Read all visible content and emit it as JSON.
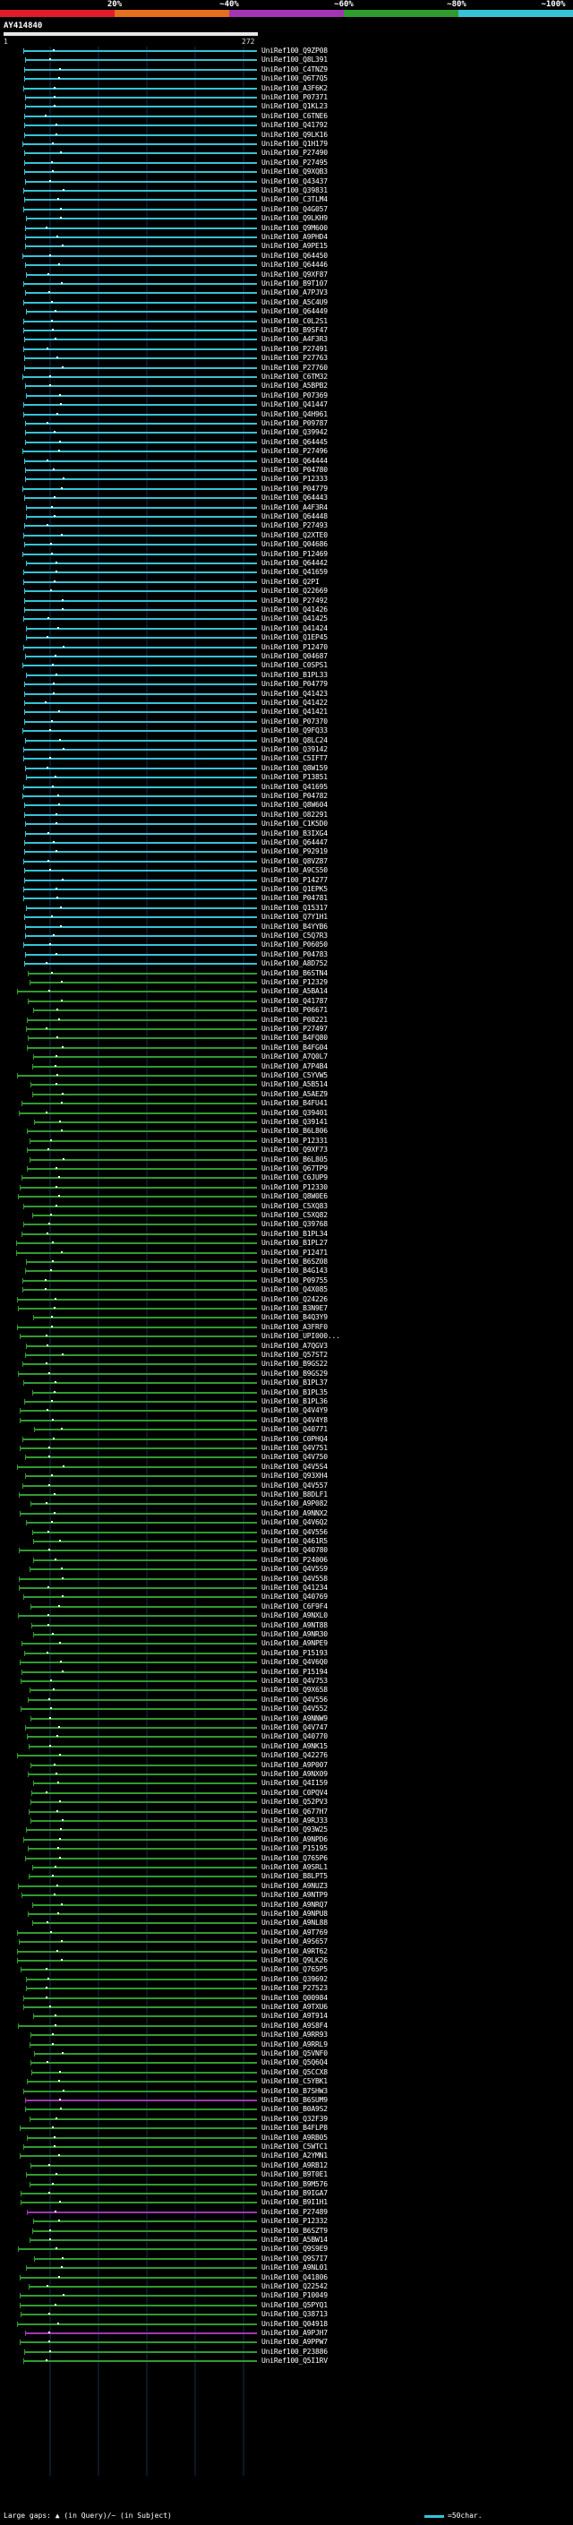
{
  "scale": {
    "labels": [
      "20%",
      "~40%",
      "~60%",
      "~80%",
      "~100%"
    ],
    "colors": [
      "#e21b2a",
      "#e66f1e",
      "#a235b4",
      "#2f9c2f",
      "#36c3d6"
    ]
  },
  "query": {
    "title": "AY414840",
    "start": "1",
    "end": "272"
  },
  "hits": [
    {
      "id": "UniRef100_Q9ZP08",
      "c": 4
    },
    {
      "id": "UniRef100_Q8L391",
      "c": 4
    },
    {
      "id": "UniRef100_C4TNZ9",
      "c": 4
    },
    {
      "id": "UniRef100_Q6T7Q5",
      "c": 4
    },
    {
      "id": "UniRef100_A3F6K2",
      "c": 4
    },
    {
      "id": "UniRef100_P07371",
      "c": 4
    },
    {
      "id": "UniRef100_Q1KL23",
      "c": 4
    },
    {
      "id": "UniRef100_C6TNE6",
      "c": 4
    },
    {
      "id": "UniRef100_Q41792",
      "c": 4
    },
    {
      "id": "UniRef100_Q9LK16",
      "c": 4
    },
    {
      "id": "UniRef100_Q1H179",
      "c": 4
    },
    {
      "id": "UniRef100_P27490",
      "c": 4
    },
    {
      "id": "UniRef100_P27495",
      "c": 4
    },
    {
      "id": "UniRef100_Q9XQB3",
      "c": 4
    },
    {
      "id": "UniRef100_Q43437",
      "c": 4
    },
    {
      "id": "UniRef100_Q39831",
      "c": 4
    },
    {
      "id": "UniRef100_C3TLM4",
      "c": 4
    },
    {
      "id": "UniRef100_Q4G057",
      "c": 4
    },
    {
      "id": "UniRef100_Q9LKH9",
      "c": 4
    },
    {
      "id": "UniRef100_Q9M600",
      "c": 4
    },
    {
      "id": "UniRef100_A9PHD4",
      "c": 4
    },
    {
      "id": "UniRef100_A9PE15",
      "c": 4
    },
    {
      "id": "UniRef100_Q64450",
      "c": 4
    },
    {
      "id": "UniRef100_Q64446",
      "c": 4
    },
    {
      "id": "UniRef100_Q9XF87",
      "c": 4
    },
    {
      "id": "UniRef100_B9T107",
      "c": 4
    },
    {
      "id": "UniRef100_A7PJV3",
      "c": 4
    },
    {
      "id": "UniRef100_A5C4U9",
      "c": 4
    },
    {
      "id": "UniRef100_Q64449",
      "c": 4
    },
    {
      "id": "UniRef100_C0L2S1",
      "c": 4
    },
    {
      "id": "UniRef100_B9SF47",
      "c": 4
    },
    {
      "id": "UniRef100_A4F3R3",
      "c": 4
    },
    {
      "id": "UniRef100_P27491",
      "c": 4
    },
    {
      "id": "UniRef100_P27763",
      "c": 4
    },
    {
      "id": "UniRef100_P27760",
      "c": 4
    },
    {
      "id": "UniRef100_C6TM32",
      "c": 4
    },
    {
      "id": "UniRef100_A5BPB2",
      "c": 4
    },
    {
      "id": "UniRef100_P07369",
      "c": 4
    },
    {
      "id": "UniRef100_Q41447",
      "c": 4
    },
    {
      "id": "UniRef100_Q4H961",
      "c": 4
    },
    {
      "id": "UniRef100_P09787",
      "c": 4
    },
    {
      "id": "UniRef100_Q39942",
      "c": 4
    },
    {
      "id": "UniRef100_Q64445",
      "c": 4
    },
    {
      "id": "UniRef100_P27496",
      "c": 4
    },
    {
      "id": "UniRef100_Q64444",
      "c": 4
    },
    {
      "id": "UniRef100_P04780",
      "c": 4
    },
    {
      "id": "UniRef100_P12333",
      "c": 4
    },
    {
      "id": "UniRef100_P04779",
      "c": 4
    },
    {
      "id": "UniRef100_Q64443",
      "c": 4
    },
    {
      "id": "UniRef100_A4F3R4",
      "c": 4
    },
    {
      "id": "UniRef100_Q64448",
      "c": 4
    },
    {
      "id": "UniRef100_P27493",
      "c": 4
    },
    {
      "id": "UniRef100_Q2XTE0",
      "c": 4
    },
    {
      "id": "UniRef100_Q04686",
      "c": 4
    },
    {
      "id": "UniRef100_P12469",
      "c": 4
    },
    {
      "id": "UniRef100_Q64442",
      "c": 4
    },
    {
      "id": "UniRef100_Q41659",
      "c": 4
    },
    {
      "id": "UniRef100_Q2PI",
      "c": 4
    },
    {
      "id": "UniRef100_Q22669",
      "c": 4
    },
    {
      "id": "UniRef100_P27492",
      "c": 4
    },
    {
      "id": "UniRef100_Q41426",
      "c": 4
    },
    {
      "id": "UniRef100_Q41425",
      "c": 4
    },
    {
      "id": "UniRef100_Q41424",
      "c": 4
    },
    {
      "id": "UniRef100_Q1EP45",
      "c": 4
    },
    {
      "id": "UniRef100_P12470",
      "c": 4
    },
    {
      "id": "UniRef100_Q04687",
      "c": 4
    },
    {
      "id": "UniRef100_C0SPS1",
      "c": 4
    },
    {
      "id": "UniRef100_B1PL33",
      "c": 4
    },
    {
      "id": "UniRef100_P04779",
      "c": 4
    },
    {
      "id": "UniRef100_Q41423",
      "c": 4
    },
    {
      "id": "UniRef100_Q41422",
      "c": 4
    },
    {
      "id": "UniRef100_Q41421",
      "c": 4
    },
    {
      "id": "UniRef100_P07370",
      "c": 4
    },
    {
      "id": "UniRef100_Q9FQ33",
      "c": 4
    },
    {
      "id": "UniRef100_Q8LC24",
      "c": 4
    },
    {
      "id": "UniRef100_Q39142",
      "c": 4
    },
    {
      "id": "UniRef100_C5IFT7",
      "c": 4
    },
    {
      "id": "UniRef100_Q8W159",
      "c": 4
    },
    {
      "id": "UniRef100_P13851",
      "c": 4
    },
    {
      "id": "UniRef100_Q41695",
      "c": 4
    },
    {
      "id": "UniRef100_P04782",
      "c": 4
    },
    {
      "id": "UniRef100_Q8W604",
      "c": 4
    },
    {
      "id": "UniRef100_O82291",
      "c": 4
    },
    {
      "id": "UniRef100_C1K5D0",
      "c": 4
    },
    {
      "id": "UniRef100_B3IXG4",
      "c": 4
    },
    {
      "id": "UniRef100_Q64447",
      "c": 4
    },
    {
      "id": "UniRef100_P92919",
      "c": 4
    },
    {
      "id": "UniRef100_Q8VZ87",
      "c": 4
    },
    {
      "id": "UniRef100_A9CS50",
      "c": 4
    },
    {
      "id": "UniRef100_P14277",
      "c": 4
    },
    {
      "id": "UniRef100_Q1EPK5",
      "c": 4
    },
    {
      "id": "UniRef100_P04781",
      "c": 4
    },
    {
      "id": "UniRef100_Q15317",
      "c": 4
    },
    {
      "id": "UniRef100_Q7Y1H1",
      "c": 4
    },
    {
      "id": "UniRef100_B4YYB6",
      "c": 4
    },
    {
      "id": "UniRef100_C5Q7R3",
      "c": 4
    },
    {
      "id": "UniRef100_P06050",
      "c": 4
    },
    {
      "id": "UniRef100_P04783",
      "c": 4
    },
    {
      "id": "UniRef100_A8D752",
      "c": 4
    },
    {
      "id": "UniRef100_B6STN4",
      "c": 3
    },
    {
      "id": "UniRef100_P12329",
      "c": 3
    },
    {
      "id": "UniRef100_A5BA14",
      "c": 3
    },
    {
      "id": "UniRef100_Q41787",
      "c": 3
    },
    {
      "id": "UniRef100_P06671",
      "c": 3
    },
    {
      "id": "UniRef100_P08221",
      "c": 3
    },
    {
      "id": "UniRef100_P27497",
      "c": 3
    },
    {
      "id": "UniRef100_B4FQ80",
      "c": 3
    },
    {
      "id": "UniRef100_B4FG04",
      "c": 3
    },
    {
      "id": "UniRef100_A7Q0L7",
      "c": 3
    },
    {
      "id": "UniRef100_A7P4B4",
      "c": 3
    },
    {
      "id": "UniRef100_C5YVW5",
      "c": 3
    },
    {
      "id": "UniRef100_A5B514",
      "c": 3
    },
    {
      "id": "UniRef100_A5AEZ9",
      "c": 3
    },
    {
      "id": "UniRef100_B4FU41",
      "c": 3
    },
    {
      "id": "UniRef100_Q39401",
      "c": 3
    },
    {
      "id": "UniRef100_Q39141",
      "c": 3
    },
    {
      "id": "UniRef100_B6L806",
      "c": 3
    },
    {
      "id": "UniRef100_P12331",
      "c": 3
    },
    {
      "id": "UniRef100_Q9XF73",
      "c": 3
    },
    {
      "id": "UniRef100_B6L805",
      "c": 3
    },
    {
      "id": "UniRef100_Q67TP9",
      "c": 3
    },
    {
      "id": "UniRef100_C6JUP9",
      "c": 3
    },
    {
      "id": "UniRef100_P12330",
      "c": 3
    },
    {
      "id": "UniRef100_Q8W0E6",
      "c": 3
    },
    {
      "id": "UniRef100_C5XQ83",
      "c": 3
    },
    {
      "id": "UniRef100_C5XQ82",
      "c": 3
    },
    {
      "id": "UniRef100_Q39768",
      "c": 3
    },
    {
      "id": "UniRef100_B1PL34",
      "c": 3
    },
    {
      "id": "UniRef100_B1PL27",
      "c": 3
    },
    {
      "id": "UniRef100_P12471",
      "c": 3
    },
    {
      "id": "UniRef100_B6SZ08",
      "c": 3
    },
    {
      "id": "UniRef100_B4G143",
      "c": 3
    },
    {
      "id": "UniRef100_P09755",
      "c": 3
    },
    {
      "id": "UniRef100_Q4X085",
      "c": 3
    },
    {
      "id": "UniRef100_Q24226",
      "c": 3
    },
    {
      "id": "UniRef100_B3N9E7",
      "c": 3
    },
    {
      "id": "UniRef100_B4Q3Y9",
      "c": 3
    },
    {
      "id": "UniRef100_A3FRF0",
      "c": 3
    },
    {
      "id": "UniRef100_UPI000...",
      "c": 3
    },
    {
      "id": "UniRef100_A7QGV3",
      "c": 3
    },
    {
      "id": "UniRef100_Q57ST2",
      "c": 3
    },
    {
      "id": "UniRef100_B9GS22",
      "c": 3
    },
    {
      "id": "UniRef100_B9GS29",
      "c": 3
    },
    {
      "id": "UniRef100_B1PL37",
      "c": 3
    },
    {
      "id": "UniRef100_B1PL35",
      "c": 3
    },
    {
      "id": "UniRef100_B1PL36",
      "c": 3
    },
    {
      "id": "UniRef100_Q4V4Y9",
      "c": 3
    },
    {
      "id": "UniRef100_Q4V4Y8",
      "c": 3
    },
    {
      "id": "UniRef100_Q40771",
      "c": 3
    },
    {
      "id": "UniRef100_C0PHQ4",
      "c": 3
    },
    {
      "id": "UniRef100_Q4V751",
      "c": 3
    },
    {
      "id": "UniRef100_Q4V750",
      "c": 3
    },
    {
      "id": "UniRef100_Q4V5S4",
      "c": 3
    },
    {
      "id": "UniRef100_Q93XH4",
      "c": 3
    },
    {
      "id": "UniRef100_Q4V557",
      "c": 3
    },
    {
      "id": "UniRef100_B8DLF1",
      "c": 3
    },
    {
      "id": "UniRef100_A9P082",
      "c": 3
    },
    {
      "id": "UniRef100_A9NNX2",
      "c": 3
    },
    {
      "id": "UniRef100_Q4V6Q2",
      "c": 3
    },
    {
      "id": "UniRef100_Q4V556",
      "c": 3
    },
    {
      "id": "UniRef100_Q461R5",
      "c": 3
    },
    {
      "id": "UniRef100_Q40780",
      "c": 3
    },
    {
      "id": "UniRef100_P24006",
      "c": 3
    },
    {
      "id": "UniRef100_Q4V5S9",
      "c": 3
    },
    {
      "id": "UniRef100_Q4V558",
      "c": 3
    },
    {
      "id": "UniRef100_Q41234",
      "c": 3
    },
    {
      "id": "UniRef100_Q40769",
      "c": 3
    },
    {
      "id": "UniRef100_C6F9F4",
      "c": 3
    },
    {
      "id": "UniRef100_A9NXL0",
      "c": 3
    },
    {
      "id": "UniRef100_A9NT88",
      "c": 3
    },
    {
      "id": "UniRef100_A9NR30",
      "c": 3
    },
    {
      "id": "UniRef100_A9NPE9",
      "c": 3
    },
    {
      "id": "UniRef100_P15193",
      "c": 3
    },
    {
      "id": "UniRef100_Q4V6Q0",
      "c": 3
    },
    {
      "id": "UniRef100_P15194",
      "c": 3
    },
    {
      "id": "UniRef100_Q4V753",
      "c": 3
    },
    {
      "id": "UniRef100_Q9X658",
      "c": 3
    },
    {
      "id": "UniRef100_Q4V556",
      "c": 3
    },
    {
      "id": "UniRef100_Q4V552",
      "c": 3
    },
    {
      "id": "UniRef100_A9NNW9",
      "c": 3
    },
    {
      "id": "UniRef100_Q4V747",
      "c": 3
    },
    {
      "id": "UniRef100_Q40770",
      "c": 3
    },
    {
      "id": "UniRef100_A9NK15",
      "c": 3
    },
    {
      "id": "UniRef100_Q42276",
      "c": 3
    },
    {
      "id": "UniRef100_A9P007",
      "c": 3
    },
    {
      "id": "UniRef100_A9NX09",
      "c": 3
    },
    {
      "id": "UniRef100_Q4I159",
      "c": 3
    },
    {
      "id": "UniRef100_C0PQV4",
      "c": 3
    },
    {
      "id": "UniRef100_Q52PV3",
      "c": 3
    },
    {
      "id": "UniRef100_Q677H7",
      "c": 3
    },
    {
      "id": "UniRef100_A9RJ33",
      "c": 3
    },
    {
      "id": "UniRef100_Q93W25",
      "c": 3
    },
    {
      "id": "UniRef100_A9NPD6",
      "c": 3
    },
    {
      "id": "UniRef100_P15195",
      "c": 3
    },
    {
      "id": "UniRef100_Q765P6",
      "c": 3
    },
    {
      "id": "UniRef100_A9SRL1",
      "c": 3
    },
    {
      "id": "UniRef100_B8LPT5",
      "c": 3
    },
    {
      "id": "UniRef100_A9NUZ3",
      "c": 3
    },
    {
      "id": "UniRef100_A9NTP9",
      "c": 3
    },
    {
      "id": "UniRef100_A9NRQ7",
      "c": 3
    },
    {
      "id": "UniRef100_A9NPU8",
      "c": 3
    },
    {
      "id": "UniRef100_A9NL88",
      "c": 3
    },
    {
      "id": "UniRef100_A9T769",
      "c": 3
    },
    {
      "id": "UniRef100_A9S657",
      "c": 3
    },
    {
      "id": "UniRef100_A9RT62",
      "c": 3
    },
    {
      "id": "UniRef100_Q9LK26",
      "c": 3
    },
    {
      "id": "UniRef100_Q765P5",
      "c": 3
    },
    {
      "id": "UniRef100_Q39692",
      "c": 3
    },
    {
      "id": "UniRef100_P27523",
      "c": 3
    },
    {
      "id": "UniRef100_Q00984",
      "c": 3
    },
    {
      "id": "UniRef100_A9TXU6",
      "c": 3
    },
    {
      "id": "UniRef100_A9T914",
      "c": 3
    },
    {
      "id": "UniRef100_A9S8F4",
      "c": 3
    },
    {
      "id": "UniRef100_A9RR93",
      "c": 3
    },
    {
      "id": "UniRef100_A9RRL9",
      "c": 3
    },
    {
      "id": "UniRef100_Q5VNF0",
      "c": 3
    },
    {
      "id": "UniRef100_Q5Q6Q4",
      "c": 3
    },
    {
      "id": "UniRef100_Q5CCX8",
      "c": 3
    },
    {
      "id": "UniRef100_C5YBK1",
      "c": 3
    },
    {
      "id": "UniRef100_B7SHW3",
      "c": 3
    },
    {
      "id": "UniRef100_B6SUM9",
      "c": 2
    },
    {
      "id": "UniRef100_B0A9S2",
      "c": 3
    },
    {
      "id": "UniRef100_Q32F39",
      "c": 3
    },
    {
      "id": "UniRef100_B4FLP8",
      "c": 3
    },
    {
      "id": "UniRef100_A9RB05",
      "c": 3
    },
    {
      "id": "UniRef100_C5WTC1",
      "c": 3
    },
    {
      "id": "UniRef100_A2YMN1",
      "c": 3
    },
    {
      "id": "UniRef100_A9RB12",
      "c": 3
    },
    {
      "id": "UniRef100_B9T0E1",
      "c": 3
    },
    {
      "id": "UniRef100_B9M576",
      "c": 3
    },
    {
      "id": "UniRef100_B9IGA7",
      "c": 3
    },
    {
      "id": "UniRef100_B9I1H1",
      "c": 3
    },
    {
      "id": "UniRef100_P27489",
      "c": 2
    },
    {
      "id": "UniRef100_P12332",
      "c": 3
    },
    {
      "id": "UniRef100_B6SZT9",
      "c": 3
    },
    {
      "id": "UniRef100_A5BW14",
      "c": 3
    },
    {
      "id": "UniRef100_Q9S9E9",
      "c": 3
    },
    {
      "id": "UniRef100_Q9S7I7",
      "c": 3
    },
    {
      "id": "UniRef100_A9NL01",
      "c": 3
    },
    {
      "id": "UniRef100_Q41806",
      "c": 3
    },
    {
      "id": "UniRef100_Q22542",
      "c": 3
    },
    {
      "id": "UniRef100_P10049",
      "c": 3
    },
    {
      "id": "UniRef100_Q5PYQ1",
      "c": 3
    },
    {
      "id": "UniRef100_Q38713",
      "c": 3
    },
    {
      "id": "UniRef100_Q04918",
      "c": 3
    },
    {
      "id": "UniRef100_A9PJH7",
      "c": 2
    },
    {
      "id": "UniRef100_A9PPW7",
      "c": 3
    },
    {
      "id": "UniRef100_P23886",
      "c": 3
    },
    {
      "id": "UniRef100_Q5I1RV",
      "c": 3
    }
  ],
  "legend": {
    "gaps_text": "Large gaps: ▲ (in Query)/~ (in Subject)",
    "scale_text": "=50char.",
    "swatch_color": "#36c3d6"
  }
}
